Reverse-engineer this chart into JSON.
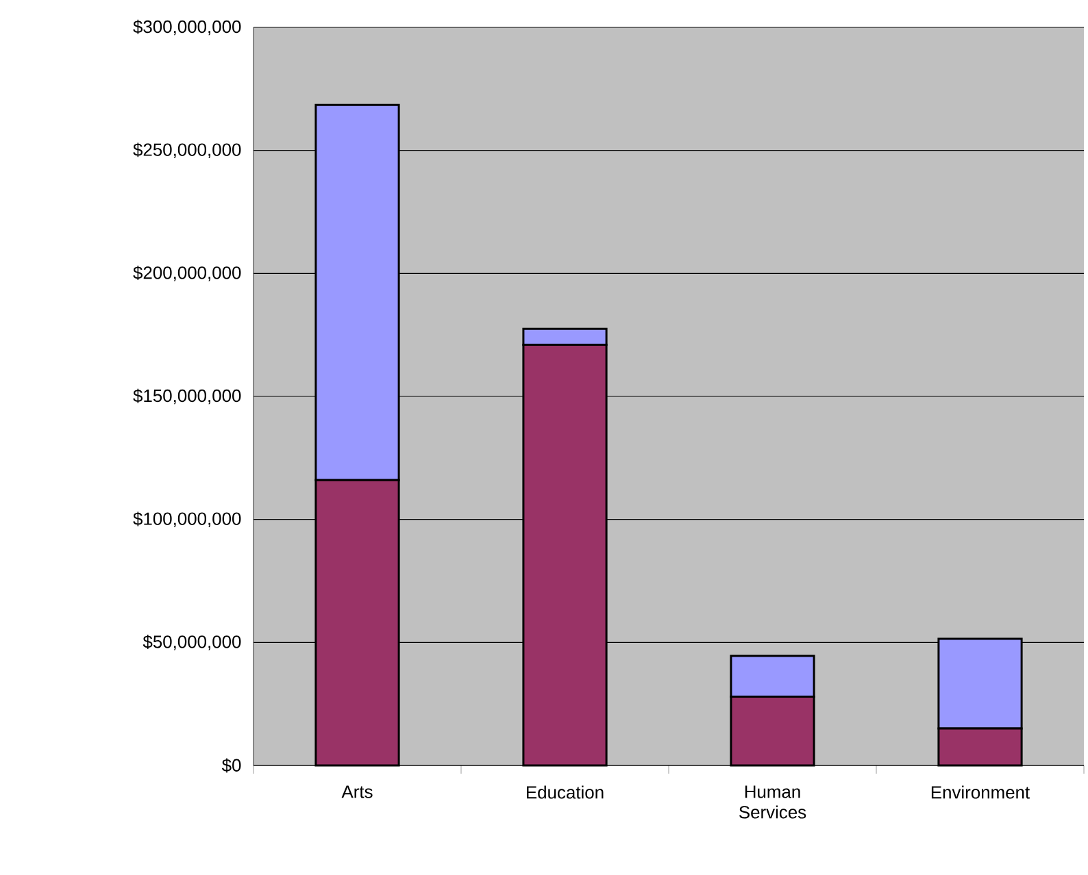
{
  "chart_data": {
    "type": "bar",
    "stacked": true,
    "categories": [
      "Arts",
      "Education",
      "Human Services",
      "Environment"
    ],
    "series": [
      {
        "color": "#993366",
        "values": [
          116000000,
          171000000,
          28000000,
          15000000
        ]
      },
      {
        "color": "#9999ff",
        "values": [
          152500000,
          6500000,
          16500000,
          36500000
        ]
      }
    ],
    "ylim": [
      0,
      300000000
    ],
    "yticks": [
      {
        "value": 0,
        "label": "$0"
      },
      {
        "value": 50000000,
        "label": "$50,000,000"
      },
      {
        "value": 100000000,
        "label": "$100,000,000"
      },
      {
        "value": 150000000,
        "label": "$150,000,000"
      },
      {
        "value": 200000000,
        "label": "$200,000,000"
      },
      {
        "value": 250000000,
        "label": "$250,000,000"
      },
      {
        "value": 300000000,
        "label": "$300,000,000"
      }
    ],
    "grid": "y"
  }
}
